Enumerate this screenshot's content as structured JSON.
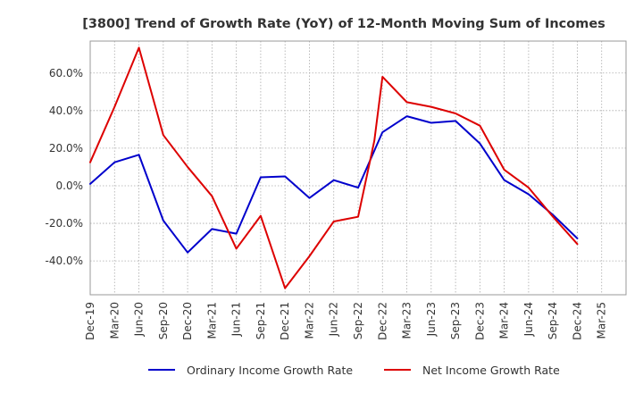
{
  "chart_data": {
    "type": "line",
    "title": "[3800]  Trend of Growth Rate (YoY) of 12-Month Moving Sum of Incomes",
    "x": [
      "Dec-19",
      "Mar-20",
      "Jun-20",
      "Sep-20",
      "Dec-20",
      "Mar-21",
      "Jun-21",
      "Sep-21",
      "Dec-21",
      "Mar-22",
      "Jun-22",
      "Sep-22",
      "Dec-22",
      "Mar-23",
      "Jun-23",
      "Sep-23",
      "Dec-23",
      "Mar-24",
      "Jun-24",
      "Sep-24",
      "Dec-24"
    ],
    "x_ticks": [
      "Dec-19",
      "Mar-20",
      "Jun-20",
      "Sep-20",
      "Dec-20",
      "Mar-21",
      "Jun-21",
      "Sep-21",
      "Dec-21",
      "Mar-22",
      "Jun-22",
      "Sep-22",
      "Dec-22",
      "Mar-23",
      "Jun-23",
      "Sep-23",
      "Dec-23",
      "Mar-24",
      "Jun-24",
      "Sep-24",
      "Dec-24",
      "Mar-25"
    ],
    "y_ticks": [
      {
        "value": 60,
        "label": "60.0%"
      },
      {
        "value": 40,
        "label": "40.0%"
      },
      {
        "value": 20,
        "label": "20.0%"
      },
      {
        "value": 0,
        "label": "0.0%"
      },
      {
        "value": -20,
        "label": "-20.0%"
      },
      {
        "value": -40,
        "label": "-40.0%"
      }
    ],
    "ylim": [
      -58,
      77
    ],
    "grid": true,
    "legend_position": "bottom",
    "series": [
      {
        "name": "Ordinary Income Growth Rate",
        "color": "#0000cc",
        "points": [
          {
            "x": "Dec-19",
            "y": 1.0
          },
          {
            "x": "Mar-20",
            "y": 12.5
          },
          {
            "x": "Jun-20",
            "y": 16.5
          },
          {
            "x": "Sep-20",
            "y": -18.5
          },
          {
            "x": "Dec-20",
            "y": -35.5
          },
          {
            "x": "Mar-21",
            "y": -23.0
          },
          {
            "x": "Jun-21",
            "y": -25.5
          },
          {
            "x": "Sep-21",
            "y": 4.5
          },
          {
            "x": "Dec-21",
            "y": 5.0
          },
          {
            "x": "Mar-22",
            "y": -6.5
          },
          {
            "x": "Jun-22",
            "y": 3.0
          },
          {
            "x": "Sep-22",
            "y": -1.0
          },
          {
            "x": "Dec-22",
            "y": 28.5
          },
          {
            "x": "Mar-23",
            "y": 37.0
          },
          {
            "x": "Jun-23",
            "y": 33.5
          },
          {
            "x": "Sep-23",
            "y": 34.5
          },
          {
            "x": "Dec-23",
            "y": 22.5
          },
          {
            "x": "Mar-24",
            "y": 3.0
          },
          {
            "x": "Jun-24",
            "y": -4.5
          },
          {
            "x": "Sep-24",
            "y": -15.5
          },
          {
            "x": "Dec-24",
            "y": -28.0
          }
        ]
      },
      {
        "name": "Net Income Growth Rate",
        "color": "#dd0000",
        "points": [
          {
            "x": "Dec-19",
            "y": 12.5
          },
          {
            "x": "Mar-20",
            "y": 42.0
          },
          {
            "x": "Jun-20",
            "y": 73.5
          },
          {
            "x": "Sep-20",
            "y": 27.0
          },
          {
            "x": "Dec-20",
            "y": 10.0
          },
          {
            "x": "Mar-21",
            "y": -5.5
          },
          {
            "x": "Jun-21",
            "y": -33.5
          },
          {
            "x": "Sep-21",
            "y": -16.0
          },
          {
            "x": "Dec-21",
            "y": -54.5
          },
          {
            "x": "Mar-22",
            "y": -37.5
          },
          {
            "x": "Jun-22",
            "y": -19.0
          },
          {
            "x": "Sep-22",
            "y": -16.5
          },
          {
            "x": "Nov-22",
            "y": 24.0
          },
          {
            "x": "Dec-22",
            "y": 58.0
          },
          {
            "x": "Mar-23",
            "y": 44.5
          },
          {
            "x": "Jun-23",
            "y": 42.0
          },
          {
            "x": "Sep-23",
            "y": 38.5
          },
          {
            "x": "Dec-23",
            "y": 32.0
          },
          {
            "x": "Mar-24",
            "y": 8.5
          },
          {
            "x": "Jun-24",
            "y": -1.0
          },
          {
            "x": "Sep-24",
            "y": -16.5
          },
          {
            "x": "Dec-24",
            "y": -31.0
          }
        ]
      }
    ]
  }
}
